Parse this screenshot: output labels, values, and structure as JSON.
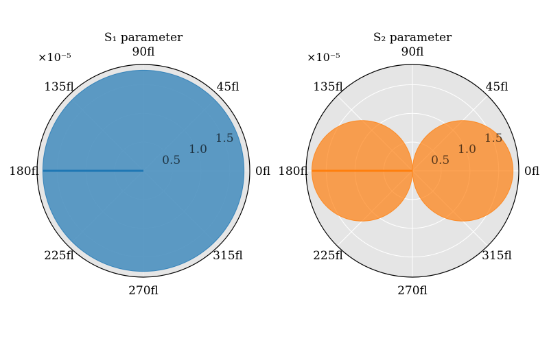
{
  "chart_data": [
    {
      "type": "polar-area",
      "title": "S₁ parameter",
      "angle_tick_labels": [
        "0fl",
        "45fl",
        "90fl",
        "135fl",
        "180fl",
        "225fl",
        "270fl",
        "315fl"
      ],
      "radial_tick_labels": [
        "0.5",
        "1.0",
        "1.5"
      ],
      "radial_ticks": [
        0.5,
        1.0,
        1.5
      ],
      "rlim": [
        0,
        1.85
      ],
      "scale_note": "×10⁻⁵",
      "series_color": "#1f77b4",
      "shape": "circle",
      "angle_deg": [
        0,
        30,
        60,
        90,
        120,
        150,
        180,
        210,
        240,
        270,
        300,
        330,
        360
      ],
      "r": [
        1.75,
        1.75,
        1.75,
        1.75,
        1.75,
        1.75,
        1.75,
        1.75,
        1.75,
        1.75,
        1.75,
        1.75,
        1.75
      ],
      "grid": true
    },
    {
      "type": "polar-area",
      "title": "S₂ parameter",
      "angle_tick_labels": [
        "0fl",
        "45fl",
        "90fl",
        "135fl",
        "180fl",
        "225fl",
        "270fl",
        "315fl"
      ],
      "radial_tick_labels": [
        "0.5",
        "1.0",
        "1.5"
      ],
      "radial_ticks": [
        0.5,
        1.0,
        1.5
      ],
      "rlim": [
        0,
        1.85
      ],
      "scale_note": "×10⁻⁵",
      "series_color": "#ff7f0e",
      "shape": "lobes-cos",
      "angle_deg": [
        0,
        30,
        60,
        90,
        120,
        150,
        180,
        210,
        240,
        270,
        300,
        330,
        360
      ],
      "r": [
        1.75,
        1.52,
        0.88,
        0.0,
        0.88,
        1.52,
        1.75,
        1.52,
        0.88,
        0.0,
        0.88,
        1.52,
        1.75
      ],
      "grid": true
    }
  ]
}
